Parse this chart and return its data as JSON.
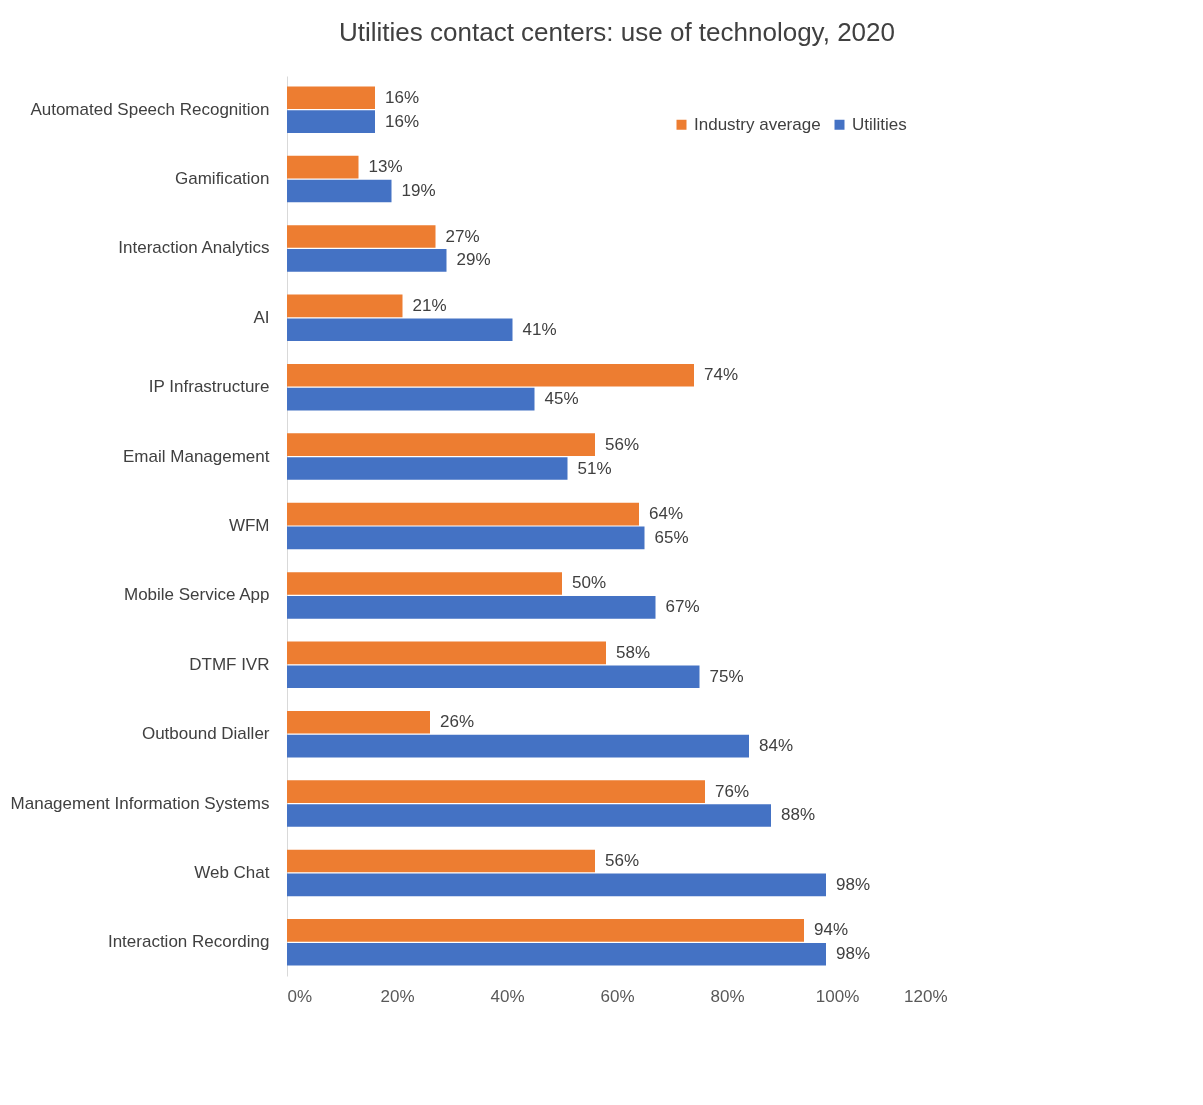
{
  "chart_data": {
    "type": "bar",
    "orientation": "horizontal",
    "title": "Utilities contact centers: use of technology, 2020",
    "categories": [
      "Automated Speech Recognition",
      "Gamification",
      "Interaction Analytics",
      "AI",
      "IP Infrastructure",
      "Email Management",
      "WFM",
      "Mobile Service App",
      "DTMF IVR",
      "Outbound Dialler",
      "Management Information Systems",
      "Web Chat",
      "Interaction Recording"
    ],
    "series": [
      {
        "name": "Industry average",
        "color": "#ed7d31",
        "values": [
          16,
          13,
          27,
          21,
          74,
          56,
          64,
          50,
          58,
          26,
          76,
          56,
          94
        ],
        "value_labels": [
          "16%",
          "13%",
          "27%",
          "21%",
          "74%",
          "56%",
          "64%",
          "50%",
          "58%",
          "26%",
          "76%",
          "56%",
          "94%"
        ]
      },
      {
        "name": "Utilities",
        "color": "#4472c4",
        "values": [
          16,
          19,
          29,
          41,
          45,
          51,
          65,
          67,
          75,
          84,
          88,
          98,
          98
        ],
        "value_labels": [
          "16%",
          "19%",
          "29%",
          "41%",
          "45%",
          "51%",
          "65%",
          "67%",
          "75%",
          "84%",
          "88%",
          "98%",
          "98%"
        ]
      }
    ],
    "xlim": [
      0,
      120
    ],
    "xticks": [
      {
        "value": 0,
        "label": "0%"
      },
      {
        "value": 20,
        "label": "20%"
      },
      {
        "value": 40,
        "label": "40%"
      },
      {
        "value": 60,
        "label": "60%"
      },
      {
        "value": 80,
        "label": "80%"
      },
      {
        "value": 100,
        "label": "100%"
      },
      {
        "value": 120,
        "label": "120%"
      }
    ],
    "grid": false,
    "legend": "top right"
  }
}
